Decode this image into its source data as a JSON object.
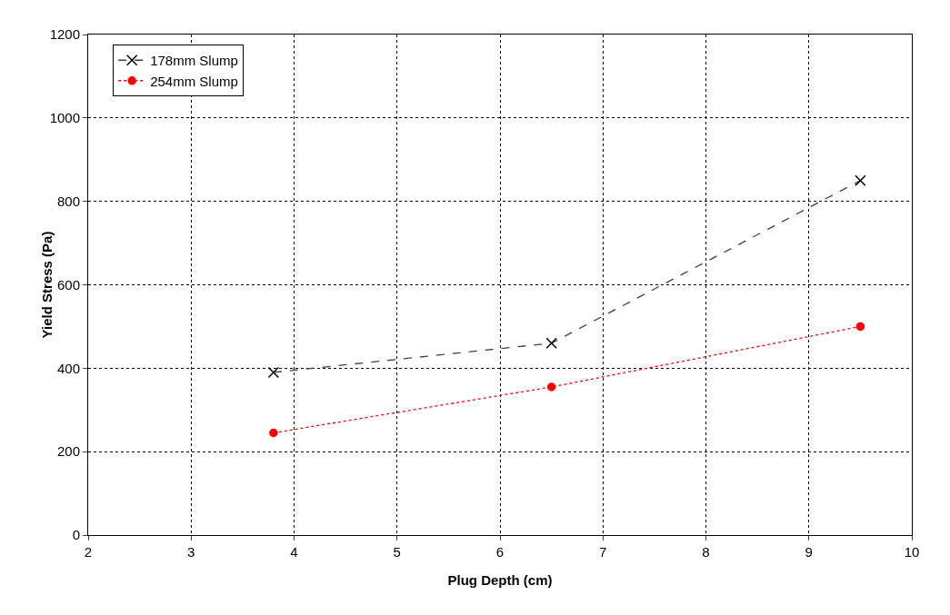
{
  "chart_data": {
    "type": "line",
    "xlabel": "Plug Depth (cm)",
    "ylabel": "Yield Stress (Pa)",
    "xlim": [
      2,
      10
    ],
    "xticks": [
      2,
      3,
      4,
      5,
      6,
      7,
      8,
      9,
      10
    ],
    "ylim": [
      0,
      1200
    ],
    "yticks": [
      0,
      200,
      400,
      600,
      800,
      1000,
      1200
    ],
    "grid": true,
    "legend": "top left",
    "series": [
      {
        "name": "178mm Slump",
        "color": "#404040",
        "x": [
          3.8,
          6.5,
          9.5
        ],
        "values": [
          390,
          460,
          850
        ],
        "marker": "cross",
        "line_style": "dashed"
      },
      {
        "name": "254mm Slump",
        "color": "#ff0000",
        "x": [
          3.8,
          6.5,
          9.5
        ],
        "values": [
          245,
          355,
          500
        ],
        "marker": "circle",
        "line_style": "dotted"
      }
    ]
  }
}
